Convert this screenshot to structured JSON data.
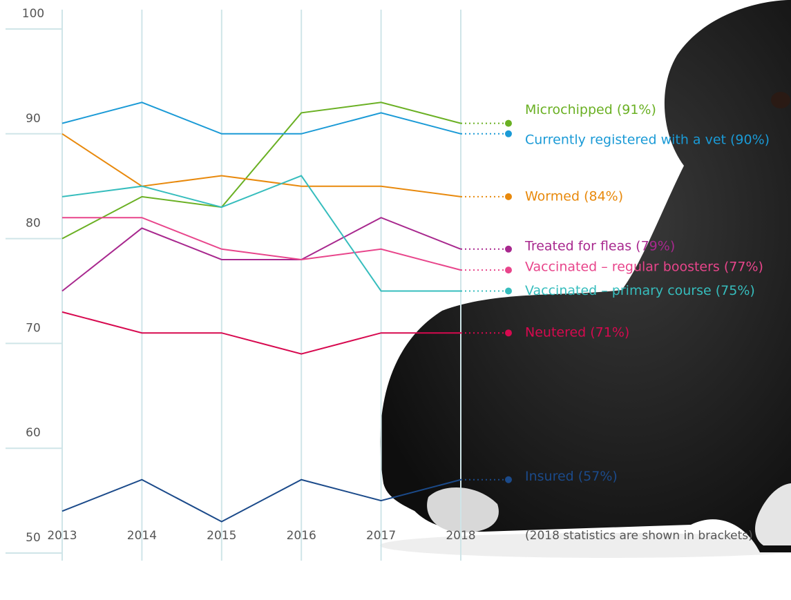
{
  "chart_data": {
    "type": "line",
    "x": [
      "2013",
      "2014",
      "2015",
      "2016",
      "2017",
      "2018"
    ],
    "ylim": [
      50,
      100
    ],
    "yticks": [
      50,
      60,
      70,
      80,
      90,
      100
    ],
    "note": "(2018 statistics are shown in brackets)",
    "series": [
      {
        "name": "Microchipped (91%)",
        "color": "#6ab023",
        "values": [
          80,
          84,
          83,
          92,
          93,
          91
        ]
      },
      {
        "name": "Currently registered with a vet (90%)",
        "color": "#1a9ad6",
        "values": [
          91,
          93,
          90,
          90,
          92,
          90
        ]
      },
      {
        "name": "Wormed (84%)",
        "color": "#e8890c",
        "values": [
          90,
          85,
          86,
          85,
          85,
          84
        ]
      },
      {
        "name": "Treated for fleas (79%)",
        "color": "#a8288e",
        "values": [
          75,
          81,
          78,
          78,
          82,
          79
        ]
      },
      {
        "name": "Vaccinated – regular boosters (77%)",
        "color": "#e8458b",
        "values": [
          82,
          82,
          79,
          78,
          79,
          77
        ]
      },
      {
        "name": "Vaccinated – primary course (75%)",
        "color": "#36bdbd",
        "values": [
          84,
          85,
          83,
          86,
          75,
          75
        ]
      },
      {
        "name": "Neutered (71%)",
        "color": "#d7094f",
        "values": [
          73,
          71,
          71,
          69,
          71,
          71
        ]
      },
      {
        "name": "Insured (57%)",
        "color": "#1b4a8a",
        "values": [
          54,
          57,
          53,
          57,
          55,
          57
        ]
      }
    ]
  }
}
